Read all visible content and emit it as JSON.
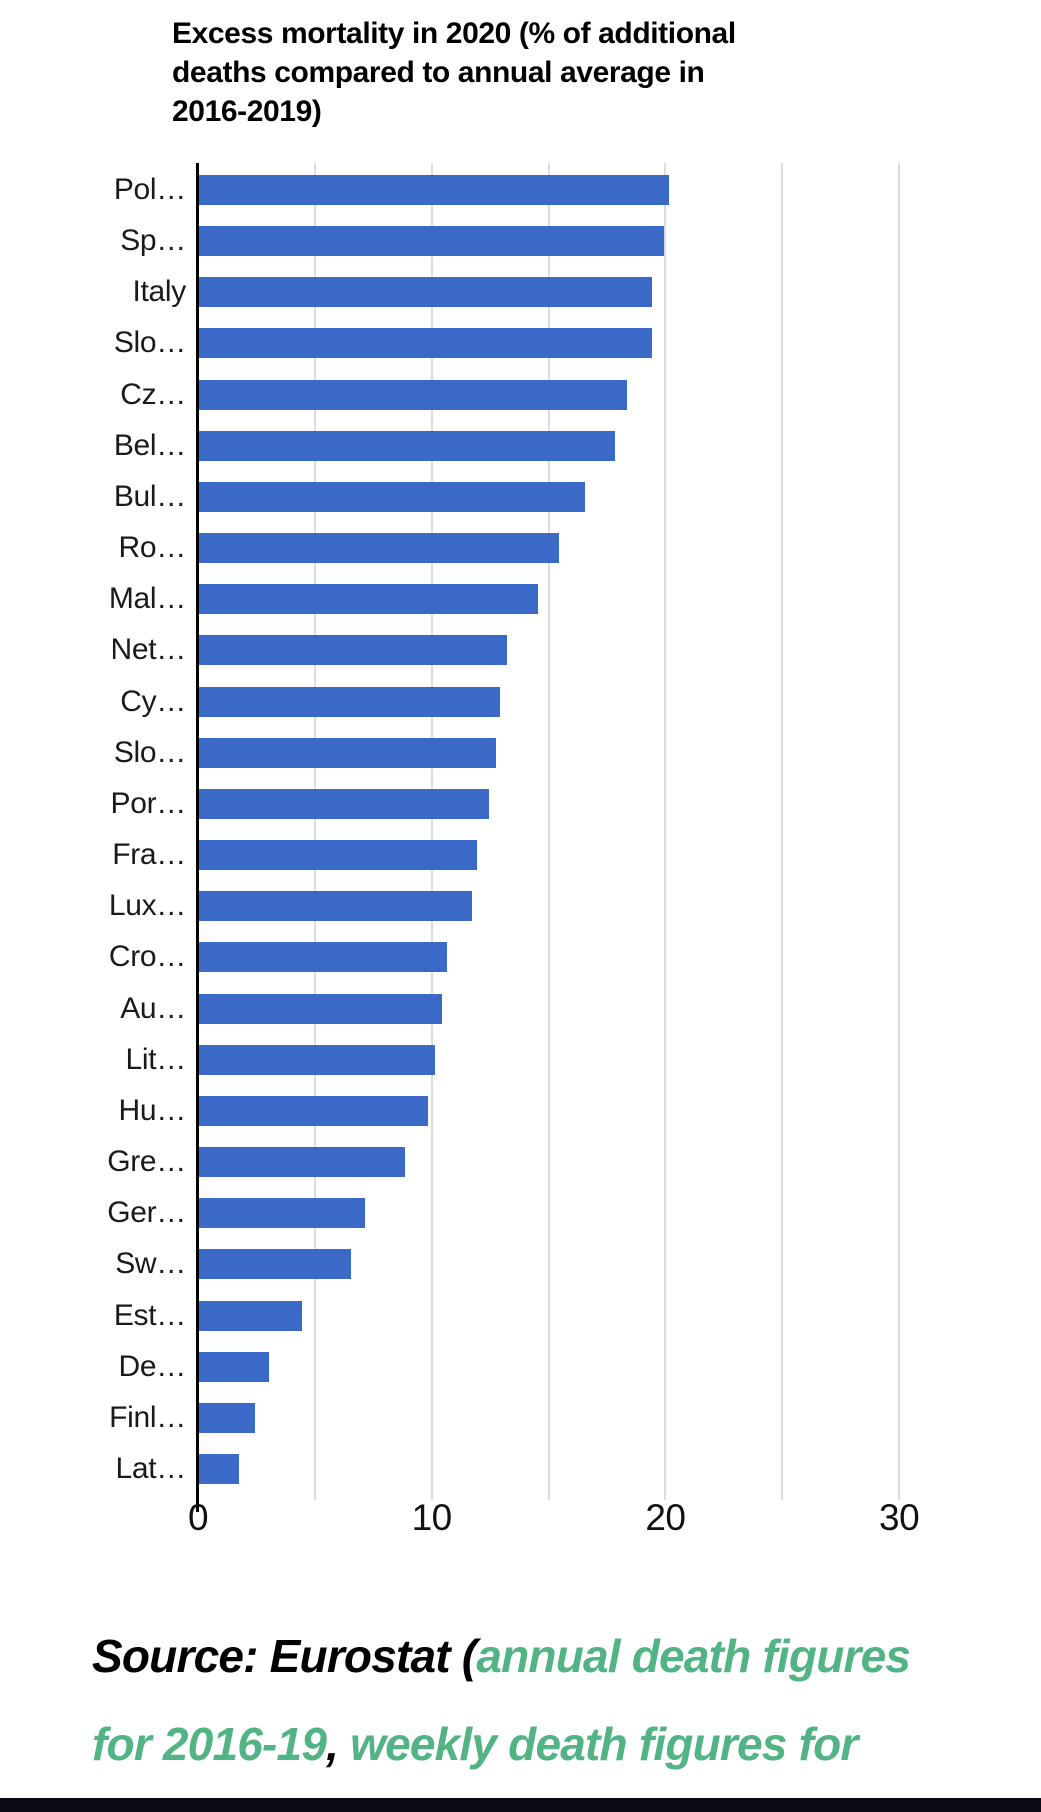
{
  "title": {
    "text": "Excess mortality in 2020 (% of additional deaths compared to annual average in 2016-2019)",
    "lines": [
      "Excess mortality in 2020 (% of additional",
      "deaths compared to annual average in",
      "2016-2019)"
    ]
  },
  "chart_data": {
    "type": "bar",
    "orientation": "horizontal",
    "title": "Excess mortality in 2020 (% of additional deaths compared to annual average in 2016-2019)",
    "categories": [
      "Pol…",
      "Sp…",
      "Italy",
      "Slo…",
      "Cz…",
      "Bel…",
      "Bul…",
      "Ro…",
      "Mal…",
      "Net…",
      "Cy…",
      "Slo…",
      "Por…",
      "Fra…",
      "Lux…",
      "Cro…",
      "Au…",
      "Lit…",
      "Hu…",
      "Gre…",
      "Ger…",
      "Sw…",
      "Est…",
      "De…",
      "Finl…",
      "Lat…"
    ],
    "values": [
      20.1,
      19.9,
      19.4,
      19.4,
      18.3,
      17.8,
      16.5,
      15.4,
      14.5,
      13.2,
      12.9,
      12.7,
      12.4,
      11.9,
      11.7,
      10.6,
      10.4,
      10.1,
      9.8,
      8.8,
      7.1,
      6.5,
      4.4,
      3.0,
      2.4,
      1.7
    ],
    "xlabel": "",
    "ylabel": "",
    "xlim": [
      0,
      32.7
    ],
    "xticks": [
      0,
      10,
      20,
      30
    ],
    "gridlines": [
      5,
      10,
      15,
      20,
      25,
      30
    ],
    "grid": true,
    "legend": false,
    "bar_color": "#3b69c8"
  },
  "source": {
    "lines": [
      {
        "segments": [
          {
            "text": "Source: Eurostat (",
            "color": "#000000",
            "link": false
          },
          {
            "text": "annual death figures",
            "color": "#52b385",
            "link": true
          }
        ]
      },
      {
        "segments": [
          {
            "text": "for 2016-19",
            "color": "#52b385",
            "link": true
          },
          {
            "text": ", ",
            "color": "#000000",
            "link": false
          },
          {
            "text": "weekly death figures for",
            "color": "#52b385",
            "link": true
          }
        ]
      }
    ]
  },
  "colors": {
    "bar": "#3b69c8",
    "grid": "#dcdcdc",
    "axis": "#000000",
    "title_text": "#000000",
    "label_text": "#1a1a1a",
    "tick_text": "#111111",
    "link_green": "#52b385",
    "bottom_bar": "#0b0b15",
    "background": "#ffffff"
  }
}
